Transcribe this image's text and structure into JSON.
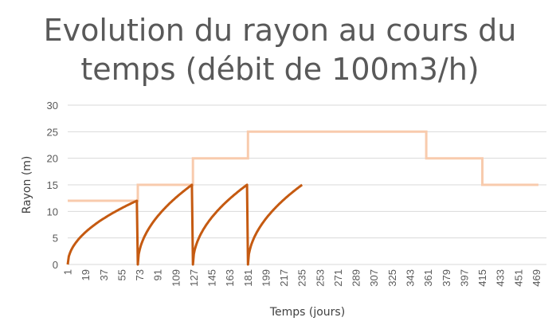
{
  "title_lines": [
    "Evolution du rayon au cours du",
    "temps (débit de 100m3/h)"
  ],
  "colors": {
    "radius": "#C55A11",
    "step": "#F8CBAD",
    "grid": "#D9D9D9",
    "text": "#595959"
  },
  "chart_data": {
    "type": "line",
    "title": "Evolution du rayon au cours du temps (débit de 100m3/h)",
    "xlabel": "Temps (jours)",
    "ylabel": "Rayon (m)",
    "xlim": [
      1,
      479
    ],
    "ylim": [
      0,
      30
    ],
    "y_ticks": [
      0,
      5,
      10,
      15,
      20,
      25,
      30
    ],
    "x_tick_labels": [
      "1",
      "19",
      "37",
      "55",
      "73",
      "91",
      "109",
      "127",
      "145",
      "163",
      "181",
      "199",
      "217",
      "235",
      "253",
      "271",
      "289",
      "307",
      "325",
      "343",
      "361",
      "379",
      "397",
      "415",
      "433",
      "451",
      "469"
    ],
    "grid": "horizontal",
    "legend": "none",
    "series": [
      {
        "style": "step",
        "color": "#F8CBAD",
        "points": [
          [
            1,
            12
          ],
          [
            71,
            12
          ],
          [
            71,
            15
          ],
          [
            126,
            15
          ],
          [
            126,
            20
          ],
          [
            181,
            20
          ],
          [
            181,
            25
          ],
          [
            359,
            25
          ],
          [
            359,
            20
          ],
          [
            415,
            20
          ],
          [
            415,
            15
          ],
          [
            471,
            15
          ]
        ]
      },
      {
        "style": "sqrt-cycles",
        "color": "#C55A11",
        "cycles": [
          {
            "start": 1,
            "end": 70,
            "peak": 12
          },
          {
            "start": 71,
            "end": 125,
            "peak": 15
          },
          {
            "start": 126,
            "end": 180,
            "peak": 15
          },
          {
            "start": 181,
            "end": 235,
            "peak": 15
          }
        ]
      }
    ]
  }
}
